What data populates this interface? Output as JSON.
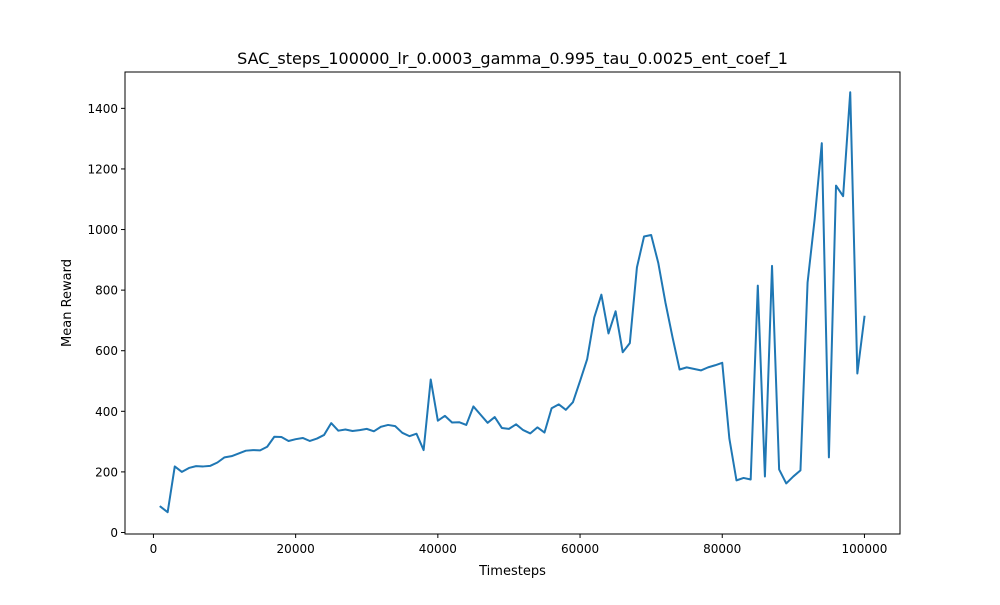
{
  "chart_data": {
    "type": "line",
    "title": "SAC_steps_100000_lr_0.0003_gamma_0.995_tau_0.0025_ent_coef_1",
    "xlabel": "Timesteps",
    "ylabel": "Mean Reward",
    "xlim": [
      -4000,
      105000
    ],
    "ylim": [
      -5,
      1520
    ],
    "xticks": [
      0,
      20000,
      40000,
      60000,
      80000,
      100000
    ],
    "yticks": [
      0,
      200,
      400,
      600,
      800,
      1000,
      1200,
      1400
    ],
    "grid": false,
    "legend": "none",
    "series": [
      {
        "color": "#1f77b4",
        "x": [
          1000,
          2000,
          3000,
          4000,
          5000,
          6000,
          7000,
          8000,
          9000,
          10000,
          11000,
          12000,
          13000,
          14000,
          15000,
          16000,
          17000,
          18000,
          19000,
          20000,
          21000,
          22000,
          23000,
          24000,
          25000,
          26000,
          27000,
          28000,
          29000,
          30000,
          31000,
          32000,
          33000,
          34000,
          35000,
          36000,
          37000,
          38000,
          39000,
          40000,
          41000,
          42000,
          43000,
          44000,
          45000,
          46000,
          47000,
          48000,
          49000,
          50000,
          51000,
          52000,
          53000,
          54000,
          55000,
          56000,
          57000,
          58000,
          59000,
          60000,
          61000,
          62000,
          63000,
          64000,
          65000,
          66000,
          67000,
          68000,
          69000,
          70000,
          71000,
          72000,
          73000,
          74000,
          75000,
          76000,
          77000,
          78000,
          79000,
          80000,
          81000,
          82000,
          83000,
          84000,
          85000,
          86000,
          87000,
          88000,
          89000,
          90000,
          91000,
          92000,
          93000,
          94000,
          95000,
          96000,
          97000,
          98000,
          99000,
          100000
        ],
        "y": [
          85,
          67,
          218,
          200,
          213,
          219,
          218,
          220,
          231,
          248,
          252,
          261,
          270,
          272,
          271,
          283,
          316,
          315,
          302,
          308,
          312,
          302,
          310,
          322,
          361,
          336,
          340,
          335,
          338,
          342,
          334,
          349,
          355,
          351,
          329,
          318,
          326,
          272,
          505,
          369,
          385,
          363,
          364,
          355,
          416,
          389,
          362,
          381,
          345,
          342,
          357,
          338,
          327,
          347,
          330,
          410,
          423,
          405,
          430,
          500,
          572,
          710,
          785,
          657,
          730,
          595,
          625,
          875,
          977,
          982,
          890,
          760,
          645,
          538,
          545,
          540,
          535,
          545,
          552,
          560,
          310,
          172,
          180,
          175,
          815,
          185,
          880,
          208,
          162,
          185,
          205,
          825,
          1035,
          1285,
          248,
          1145,
          1110,
          1453,
          525,
          712
        ]
      }
    ]
  }
}
